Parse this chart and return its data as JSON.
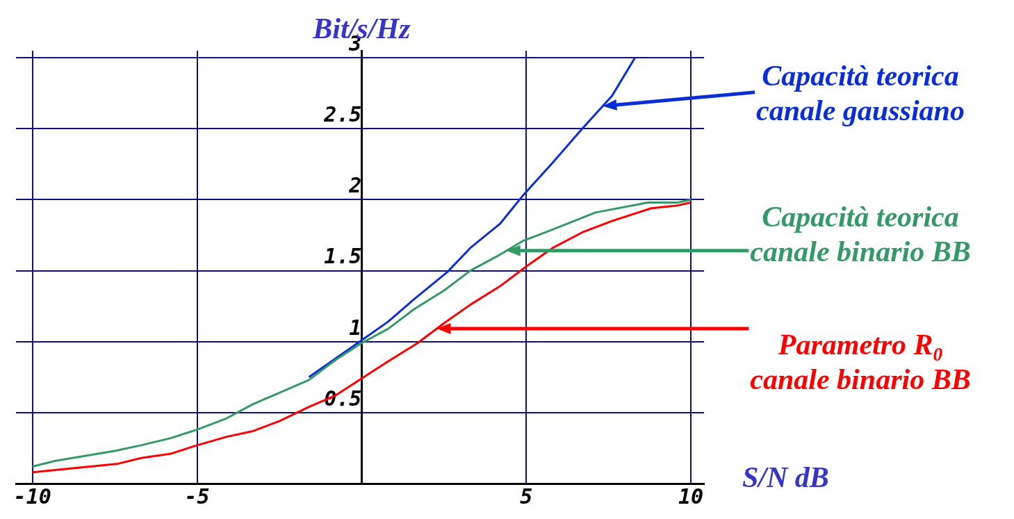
{
  "chart_data": {
    "type": "line",
    "xlabel": "S/N dB",
    "ylabel": "Bit/s/Hz",
    "xlim": [
      -10.5,
      10.4
    ],
    "ylim": [
      0,
      3.05
    ],
    "xticks": [
      -10,
      -5,
      5,
      10
    ],
    "yticks": [
      0.5,
      1,
      1.5,
      2,
      2.5,
      3
    ],
    "grid": true,
    "legend": false,
    "marker": "none",
    "line_style": "solid",
    "series": [
      {
        "color": "#0a2ed6",
        "x": [
          -1.6,
          -0.8,
          0,
          0.8,
          1.6,
          2.6,
          3.3,
          4.2,
          4.9,
          5.8,
          6.7,
          7.6,
          8.3
        ],
        "values": [
          0.75,
          0.88,
          1.01,
          1.14,
          1.3,
          1.49,
          1.66,
          1.83,
          2.03,
          2.26,
          2.5,
          2.73,
          3.0
        ]
      },
      {
        "color": "#339966",
        "x": [
          -10,
          -9.3,
          -7.5,
          -6.7,
          -5.8,
          -5,
          -4.1,
          -3.3,
          -2.5,
          -1.6,
          -0.8,
          0,
          0.8,
          1.6,
          2.5,
          3.3,
          4.1,
          4.9,
          5.8,
          7.1,
          8.7,
          9.6,
          10
        ],
        "values": [
          0.12,
          0.16,
          0.23,
          0.27,
          0.32,
          0.38,
          0.46,
          0.56,
          0.64,
          0.73,
          0.87,
          0.99,
          1.09,
          1.23,
          1.36,
          1.5,
          1.6,
          1.71,
          1.79,
          1.91,
          1.98,
          1.98,
          2.0
        ]
      },
      {
        "color": "#ff0000",
        "x": [
          -10,
          -7.4,
          -6.7,
          -5.8,
          -5,
          -4.1,
          -3.3,
          -2.5,
          -1.6,
          -0.8,
          0,
          0.8,
          1.7,
          2.5,
          3.3,
          4.2,
          5,
          5.8,
          6.7,
          7.6,
          8.8,
          9.6,
          10
        ],
        "values": [
          0.08,
          0.14,
          0.18,
          0.21,
          0.27,
          0.33,
          0.37,
          0.44,
          0.54,
          0.62,
          0.74,
          0.86,
          0.99,
          1.13,
          1.26,
          1.39,
          1.53,
          1.66,
          1.77,
          1.85,
          1.94,
          1.96,
          1.98
        ]
      }
    ],
    "annotations": [
      "Capacità teorica\ncanale gaussiano",
      "Capacità teorica\ncanale binario BB",
      "Parametro R$_{0}$\ncanale binario BB"
    ]
  }
}
